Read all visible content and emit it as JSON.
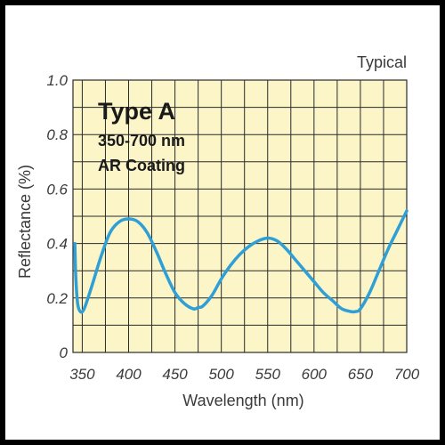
{
  "chart_data": {
    "type": "line",
    "corner_note": "Typical",
    "annotation": {
      "title": "Type A",
      "lines": [
        "350-700 nm",
        "AR Coating"
      ]
    },
    "xlabel": "Wavelength (nm)",
    "ylabel": "Reflectance (%)",
    "xlim": [
      340,
      700
    ],
    "ylim": [
      0,
      1.0
    ],
    "x_ticks": [
      350,
      400,
      450,
      500,
      550,
      600,
      650,
      700
    ],
    "x_tick_labels": [
      "350",
      "400",
      "450",
      "500",
      "550",
      "600",
      "650",
      "700"
    ],
    "y_ticks": [
      0,
      0.2,
      0.4,
      0.6,
      0.8,
      1.0
    ],
    "y_tick_labels": [
      "0",
      "0.2",
      "0.4",
      "0.6",
      "0.8",
      "1.0"
    ],
    "grid": true,
    "series": [
      {
        "x": [
          342,
          343,
          345,
          348,
          352,
          360,
          370,
          380,
          390,
          400,
          410,
          420,
          430,
          440,
          450,
          460,
          470,
          475,
          480,
          490,
          500,
          510,
          520,
          530,
          540,
          550,
          560,
          570,
          580,
          590,
          600,
          610,
          620,
          630,
          640,
          645,
          650,
          660,
          670,
          680,
          690,
          700
        ],
        "y": [
          0.4,
          0.28,
          0.18,
          0.15,
          0.16,
          0.24,
          0.35,
          0.44,
          0.48,
          0.49,
          0.48,
          0.44,
          0.37,
          0.29,
          0.22,
          0.18,
          0.16,
          0.165,
          0.17,
          0.21,
          0.27,
          0.32,
          0.36,
          0.39,
          0.41,
          0.42,
          0.41,
          0.38,
          0.34,
          0.3,
          0.26,
          0.22,
          0.19,
          0.16,
          0.15,
          0.15,
          0.16,
          0.22,
          0.3,
          0.38,
          0.45,
          0.52
        ]
      }
    ]
  },
  "colors": {
    "plot_background": "#fbf5c8",
    "grid": "#2a2a2a",
    "line": "#2f9fd6",
    "text": "#3a3a3a"
  }
}
